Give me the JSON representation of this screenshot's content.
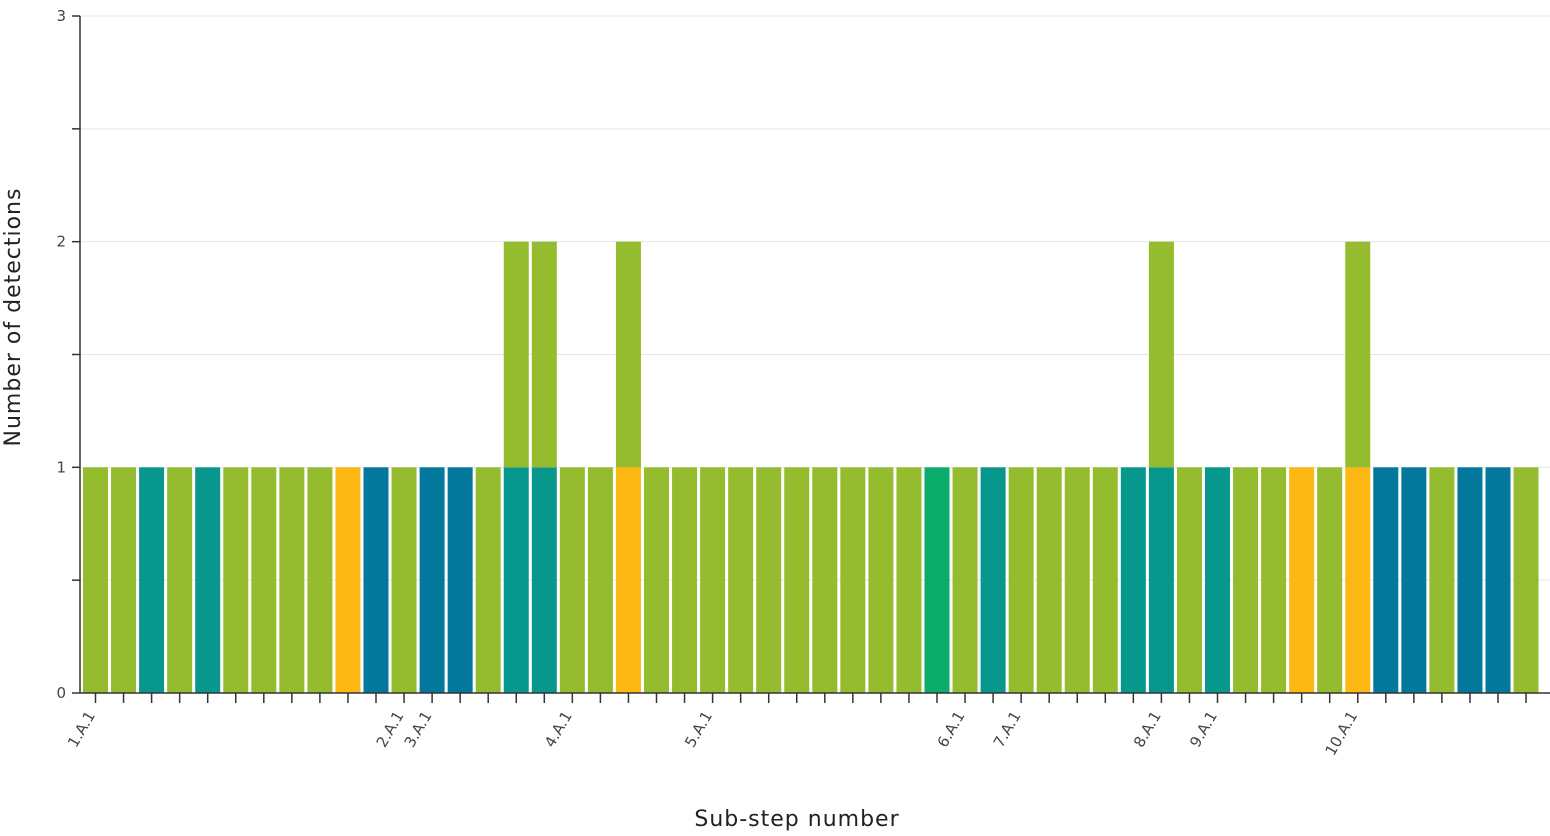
{
  "chart_data": {
    "type": "bar",
    "stacked": true,
    "xlabel": "Sub-step number",
    "ylabel": "Number of detections",
    "ylim": [
      0,
      3
    ],
    "yticks": [
      0,
      1,
      2,
      3
    ],
    "minor_grid_step": 0.5,
    "x_tick_labels": [
      {
        "index": 0,
        "label": "1.A.1"
      },
      {
        "index": 11,
        "label": "2.A.1"
      },
      {
        "index": 12,
        "label": "3.A.1"
      },
      {
        "index": 17,
        "label": "4.A.1"
      },
      {
        "index": 22,
        "label": "5.A.1"
      },
      {
        "index": 31,
        "label": "6.A.1"
      },
      {
        "index": 33,
        "label": "7.A.1"
      },
      {
        "index": 38,
        "label": "8.A.1"
      },
      {
        "index": 40,
        "label": "9.A.1"
      },
      {
        "index": 45,
        "label": "10.A.1"
      }
    ],
    "colors": {
      "lime": "#95bb2e",
      "teal": "#08978d",
      "orange": "#fdb813",
      "blue": "#03789c",
      "green": "#0bab6b"
    },
    "bars": [
      [
        "lime"
      ],
      [
        "lime"
      ],
      [
        "teal"
      ],
      [
        "lime"
      ],
      [
        "teal"
      ],
      [
        "lime"
      ],
      [
        "lime"
      ],
      [
        "lime"
      ],
      [
        "lime"
      ],
      [
        "orange"
      ],
      [
        "blue"
      ],
      [
        "lime"
      ],
      [
        "blue"
      ],
      [
        "blue"
      ],
      [
        "lime"
      ],
      [
        "teal",
        "lime"
      ],
      [
        "teal",
        "lime"
      ],
      [
        "lime"
      ],
      [
        "lime"
      ],
      [
        "orange",
        "lime"
      ],
      [
        "lime"
      ],
      [
        "lime"
      ],
      [
        "lime"
      ],
      [
        "lime"
      ],
      [
        "lime"
      ],
      [
        "lime"
      ],
      [
        "lime"
      ],
      [
        "lime"
      ],
      [
        "lime"
      ],
      [
        "lime"
      ],
      [
        "green"
      ],
      [
        "lime"
      ],
      [
        "teal"
      ],
      [
        "lime"
      ],
      [
        "lime"
      ],
      [
        "lime"
      ],
      [
        "lime"
      ],
      [
        "teal"
      ],
      [
        "teal",
        "lime"
      ],
      [
        "lime"
      ],
      [
        "teal"
      ],
      [
        "lime"
      ],
      [
        "lime"
      ],
      [
        "orange"
      ],
      [
        "lime"
      ],
      [
        "orange",
        "lime"
      ],
      [
        "blue"
      ],
      [
        "blue"
      ],
      [
        "lime"
      ],
      [
        "blue"
      ],
      [
        "blue"
      ],
      [
        "lime"
      ]
    ]
  }
}
